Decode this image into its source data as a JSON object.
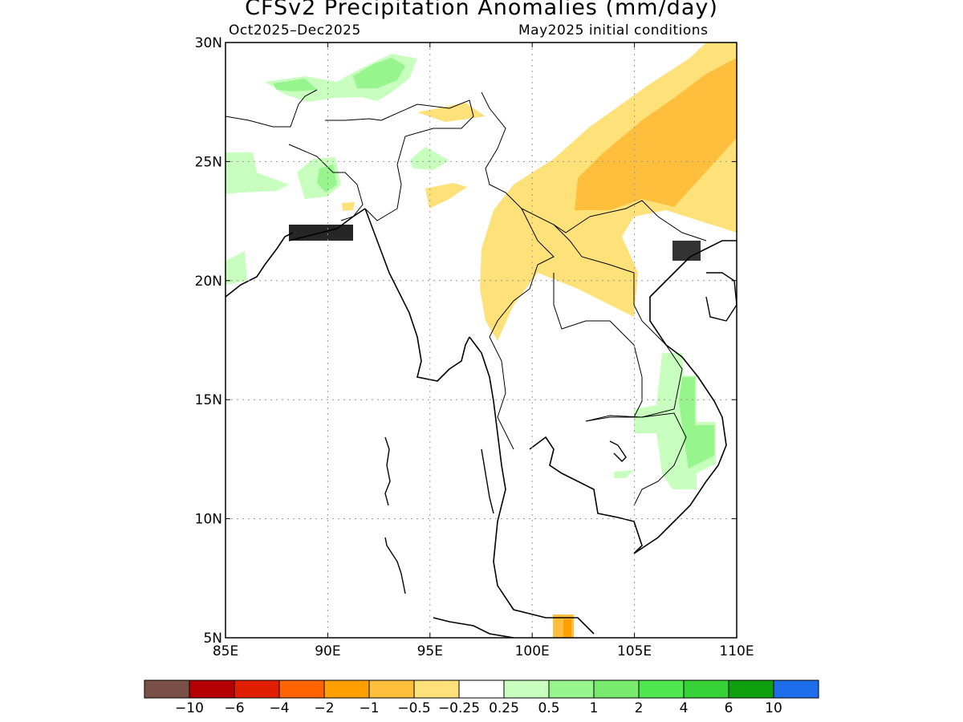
{
  "title": "CFSv2 Precipitation Anomalies (mm/day)",
  "subtitle_left": "Oct2025–Dec2025",
  "subtitle_right": "May2025 initial conditions",
  "map": {
    "lon_range": [
      85,
      110
    ],
    "lat_range": [
      5,
      30
    ],
    "x_ticks": [
      {
        "value": 85,
        "label": "85E"
      },
      {
        "value": 90,
        "label": "90E"
      },
      {
        "value": 95,
        "label": "95E"
      },
      {
        "value": 100,
        "label": "100E"
      },
      {
        "value": 105,
        "label": "105E"
      },
      {
        "value": 110,
        "label": "110E"
      }
    ],
    "y_ticks": [
      {
        "value": 30,
        "label": "30N"
      },
      {
        "value": 25,
        "label": "25N"
      },
      {
        "value": 20,
        "label": "20N"
      },
      {
        "value": 15,
        "label": "15N"
      },
      {
        "value": 10,
        "label": "10N"
      },
      {
        "value": 5,
        "label": "5N"
      }
    ],
    "grid": true,
    "coastline_color": "#000000"
  },
  "colorbar": {
    "colors": [
      "#7a4f45",
      "#b40000",
      "#e01e00",
      "#ff6400",
      "#ffa000",
      "#ffbe3c",
      "#ffe17a",
      "#ffffff",
      "#c8ffbe",
      "#96f58c",
      "#78eb6e",
      "#50e650",
      "#37d237",
      "#0fa00f",
      "#1e6eeb"
    ],
    "labels": [
      "−10",
      "−6",
      "−4",
      "−2",
      "−1",
      "−0.5",
      "−0.25",
      "0.25",
      "0.5",
      "1",
      "2",
      "4",
      "6",
      "10"
    ]
  }
}
